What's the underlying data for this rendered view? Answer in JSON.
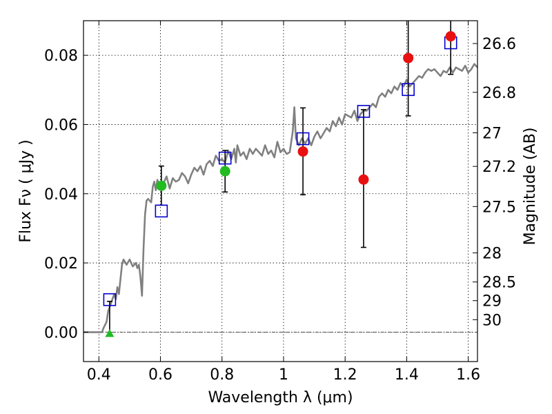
{
  "chart_data": {
    "type": "scatter",
    "xlabel": "Wavelength  λ (μm)",
    "ylabel": "Flux  Fν  ( μJy )",
    "right_ylabel": "Magnitude (AB)",
    "xlim": [
      0.35,
      1.63
    ],
    "ylim": [
      -0.0085,
      0.09
    ],
    "grid": true,
    "x_ticks": [
      {
        "value": 0.4,
        "label": "0.4"
      },
      {
        "value": 0.6,
        "label": "0.6"
      },
      {
        "value": 0.8,
        "label": "0.8"
      },
      {
        "value": 1.0,
        "label": "1"
      },
      {
        "value": 1.2,
        "label": "1.2"
      },
      {
        "value": 1.4,
        "label": "1.4"
      },
      {
        "value": 1.6,
        "label": "1.6"
      }
    ],
    "y_ticks": [
      {
        "value": 0.0,
        "label": "0.00"
      },
      {
        "value": 0.02,
        "label": "0.02"
      },
      {
        "value": 0.04,
        "label": "0.04"
      },
      {
        "value": 0.06,
        "label": "0.06"
      },
      {
        "value": 0.08,
        "label": "0.08"
      }
    ],
    "right_y_ticks": [
      {
        "value": 0.0834,
        "label": "26.6"
      },
      {
        "value": 0.0693,
        "label": "26.8"
      },
      {
        "value": 0.0576,
        "label": "27"
      },
      {
        "value": 0.0479,
        "label": "27.2"
      },
      {
        "value": 0.0363,
        "label": "27.5"
      },
      {
        "value": 0.0229,
        "label": "28"
      },
      {
        "value": 0.0145,
        "label": "28.5"
      },
      {
        "value": 0.0091,
        "label": "29"
      },
      {
        "value": 0.0036,
        "label": "30"
      }
    ],
    "zero_line": 0.0,
    "series": [
      {
        "kind": "line",
        "color": "#808080",
        "points": [
          [
            0.35,
            0.0
          ],
          [
            0.39,
            0.0
          ],
          [
            0.41,
            0.0
          ],
          [
            0.415,
            0.0012
          ],
          [
            0.425,
            0.003
          ],
          [
            0.43,
            0.006
          ],
          [
            0.44,
            0.0085
          ],
          [
            0.45,
            0.011
          ],
          [
            0.455,
            0.0095
          ],
          [
            0.46,
            0.013
          ],
          [
            0.465,
            0.011
          ],
          [
            0.475,
            0.0195
          ],
          [
            0.48,
            0.021
          ],
          [
            0.49,
            0.0195
          ],
          [
            0.5,
            0.021
          ],
          [
            0.51,
            0.019
          ],
          [
            0.52,
            0.02
          ],
          [
            0.525,
            0.0185
          ],
          [
            0.53,
            0.0195
          ],
          [
            0.535,
            0.016
          ],
          [
            0.54,
            0.0105
          ],
          [
            0.545,
            0.024
          ],
          [
            0.55,
            0.034
          ],
          [
            0.555,
            0.038
          ],
          [
            0.56,
            0.0385
          ],
          [
            0.57,
            0.0375
          ],
          [
            0.575,
            0.042
          ],
          [
            0.58,
            0.0435
          ],
          [
            0.585,
            0.041
          ],
          [
            0.59,
            0.044
          ],
          [
            0.6,
            0.0415
          ],
          [
            0.61,
            0.043
          ],
          [
            0.62,
            0.045
          ],
          [
            0.63,
            0.0415
          ],
          [
            0.64,
            0.0445
          ],
          [
            0.65,
            0.0435
          ],
          [
            0.66,
            0.044
          ],
          [
            0.67,
            0.046
          ],
          [
            0.68,
            0.045
          ],
          [
            0.69,
            0.043
          ],
          [
            0.7,
            0.0455
          ],
          [
            0.71,
            0.0475
          ],
          [
            0.72,
            0.0465
          ],
          [
            0.73,
            0.048
          ],
          [
            0.74,
            0.0455
          ],
          [
            0.75,
            0.0485
          ],
          [
            0.76,
            0.0495
          ],
          [
            0.77,
            0.048
          ],
          [
            0.78,
            0.051
          ],
          [
            0.79,
            0.0495
          ],
          [
            0.8,
            0.05
          ],
          [
            0.81,
            0.049
          ],
          [
            0.82,
            0.0525
          ],
          [
            0.83,
            0.05
          ],
          [
            0.84,
            0.053
          ],
          [
            0.845,
            0.049
          ],
          [
            0.85,
            0.054
          ],
          [
            0.86,
            0.051
          ],
          [
            0.87,
            0.052
          ],
          [
            0.88,
            0.05
          ],
          [
            0.89,
            0.053
          ],
          [
            0.9,
            0.0515
          ],
          [
            0.91,
            0.053
          ],
          [
            0.92,
            0.052
          ],
          [
            0.93,
            0.051
          ],
          [
            0.94,
            0.054
          ],
          [
            0.95,
            0.0515
          ],
          [
            0.96,
            0.0525
          ],
          [
            0.97,
            0.0505
          ],
          [
            0.98,
            0.055
          ],
          [
            0.99,
            0.052
          ],
          [
            1.0,
            0.053
          ],
          [
            1.01,
            0.0515
          ],
          [
            1.02,
            0.052
          ],
          [
            1.03,
            0.058
          ],
          [
            1.035,
            0.065
          ],
          [
            1.04,
            0.056
          ],
          [
            1.05,
            0.054
          ],
          [
            1.06,
            0.056
          ],
          [
            1.07,
            0.0545
          ],
          [
            1.08,
            0.056
          ],
          [
            1.09,
            0.054
          ],
          [
            1.1,
            0.0565
          ],
          [
            1.11,
            0.058
          ],
          [
            1.12,
            0.056
          ],
          [
            1.13,
            0.0575
          ],
          [
            1.14,
            0.059
          ],
          [
            1.15,
            0.058
          ],
          [
            1.16,
            0.061
          ],
          [
            1.17,
            0.0595
          ],
          [
            1.18,
            0.062
          ],
          [
            1.19,
            0.06
          ],
          [
            1.2,
            0.063
          ],
          [
            1.21,
            0.0625
          ],
          [
            1.22,
            0.062
          ],
          [
            1.23,
            0.064
          ],
          [
            1.24,
            0.061
          ],
          [
            1.25,
            0.063
          ],
          [
            1.26,
            0.064
          ],
          [
            1.27,
            0.064
          ],
          [
            1.28,
            0.065
          ],
          [
            1.29,
            0.066
          ],
          [
            1.3,
            0.065
          ],
          [
            1.31,
            0.068
          ],
          [
            1.32,
            0.069
          ],
          [
            1.33,
            0.068
          ],
          [
            1.34,
            0.07
          ],
          [
            1.35,
            0.069
          ],
          [
            1.36,
            0.071
          ],
          [
            1.37,
            0.07
          ],
          [
            1.38,
            0.072
          ],
          [
            1.39,
            0.071
          ],
          [
            1.4,
            0.073
          ],
          [
            1.41,
            0.071
          ],
          [
            1.42,
            0.072
          ],
          [
            1.43,
            0.073
          ],
          [
            1.44,
            0.074
          ],
          [
            1.45,
            0.0735
          ],
          [
            1.46,
            0.075
          ],
          [
            1.47,
            0.076
          ],
          [
            1.48,
            0.0755
          ],
          [
            1.49,
            0.076
          ],
          [
            1.5,
            0.075
          ],
          [
            1.51,
            0.074
          ],
          [
            1.52,
            0.0755
          ],
          [
            1.53,
            0.075
          ],
          [
            1.54,
            0.0765
          ],
          [
            1.55,
            0.075
          ],
          [
            1.56,
            0.0765
          ],
          [
            1.57,
            0.076
          ],
          [
            1.58,
            0.0755
          ],
          [
            1.59,
            0.077
          ],
          [
            1.6,
            0.075
          ],
          [
            1.61,
            0.076
          ],
          [
            1.62,
            0.0775
          ],
          [
            1.63,
            0.0765
          ]
        ]
      },
      {
        "kind": "squares",
        "color": "#0000cc",
        "points": [
          [
            0.435,
            0.0094
          ],
          [
            0.603,
            0.035
          ],
          [
            0.81,
            0.0503
          ],
          [
            1.063,
            0.0559
          ],
          [
            1.26,
            0.0638
          ],
          [
            1.405,
            0.0701
          ],
          [
            1.543,
            0.0836
          ]
        ]
      },
      {
        "kind": "circles",
        "color": "#e81010",
        "points": [
          {
            "x": 1.063,
            "y": 0.0522,
            "lo": 0.0397,
            "hi": 0.0648
          },
          {
            "x": 1.26,
            "y": 0.0441,
            "lo": 0.0245,
            "hi": 0.0643
          },
          {
            "x": 1.405,
            "y": 0.0792,
            "lo": 0.0625,
            "hi": 0.0905
          },
          {
            "x": 1.543,
            "y": 0.0855,
            "lo": 0.0745,
            "hi": 0.0905
          }
        ]
      },
      {
        "kind": "circles",
        "color": "#22bb22",
        "points": [
          {
            "x": 0.603,
            "y": 0.0423,
            "lo": 0.0367,
            "hi": 0.048
          },
          {
            "x": 0.81,
            "y": 0.0465,
            "lo": 0.0405,
            "hi": 0.0525
          }
        ]
      },
      {
        "kind": "triangles",
        "color": "#22bb22",
        "points": [
          {
            "x": 0.435,
            "y": -0.0003,
            "lo": -0.0003,
            "hi": 0.0089
          }
        ]
      }
    ]
  }
}
